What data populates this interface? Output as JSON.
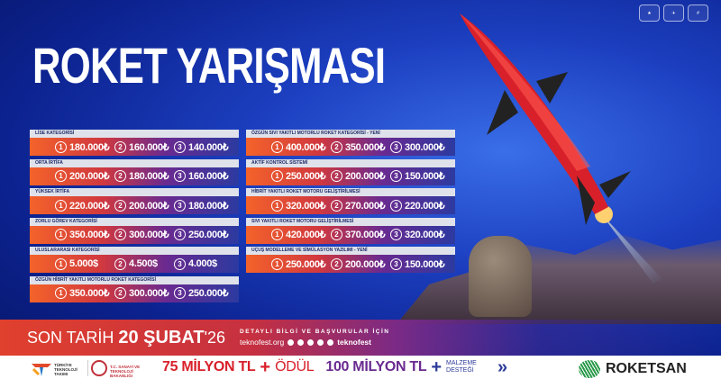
{
  "title": "ROKET YARIŞMASI",
  "badges": [
    "icon-1",
    "icon-2",
    "icon-3"
  ],
  "left_categories": [
    {
      "name": "LİSE KATEGORİSİ",
      "prizes": [
        "180.000₺",
        "160.000₺",
        "140.000₺"
      ]
    },
    {
      "name": "ORTA İRTİFA",
      "prizes": [
        "200.000₺",
        "180.000₺",
        "160.000₺"
      ]
    },
    {
      "name": "YÜKSEK İRTİFA",
      "prizes": [
        "220.000₺",
        "200.000₺",
        "180.000₺"
      ]
    },
    {
      "name": "ZORLU GÖREV KATEGORİSİ",
      "prizes": [
        "350.000₺",
        "300.000₺",
        "250.000₺"
      ]
    },
    {
      "name": "ULUSLARARASI KATEGORİSİ",
      "prizes": [
        "5.000$",
        "4.500$",
        "4.000$"
      ]
    },
    {
      "name": "ÖZGÜN HİBRİT YAKITLI MOTORLU ROKET KATEGORİSİ",
      "prizes": [
        "350.000₺",
        "300.000₺",
        "250.000₺"
      ]
    }
  ],
  "right_categories": [
    {
      "name": "ÖZGÜN SIVI YAKITLI MOTORLU ROKET KATEGORİSİ - YENİ",
      "prizes": [
        "400.000₺",
        "350.000₺",
        "300.000₺"
      ]
    },
    {
      "name": "AKTİF KONTROL SİSTEMİ",
      "prizes": [
        "250.000₺",
        "200.000₺",
        "150.000₺"
      ]
    },
    {
      "name": "HİBRİT YAKITLI ROKET MOTORU GELİŞTİRİLMESİ",
      "prizes": [
        "320.000₺",
        "270.000₺",
        "220.000₺"
      ]
    },
    {
      "name": "SIVI YAKITLI ROKET MOTORU GELİŞTİRİLMESİ",
      "prizes": [
        "420.000₺",
        "370.000₺",
        "320.000₺"
      ]
    },
    {
      "name": "UÇUŞ MODELLEME VE SİMÜLASYON YAZILIMI - YENİ",
      "prizes": [
        "250.000₺",
        "200.000₺",
        "150.000₺"
      ]
    }
  ],
  "ranks": [
    "1",
    "2",
    "3"
  ],
  "deadline": {
    "prefix": "SON TARİH ",
    "date": "20 ŞUBAT",
    "year": "'26"
  },
  "info": {
    "heading": "DETAYLI BİLGİ VE BAŞVURULAR İÇİN",
    "site": "teknofest.org",
    "handle": "teknofest"
  },
  "footer": {
    "org1": "TÜRKİYE TEKNOLOJİ TAKIMI",
    "org2": "T.C. SANAYİ VE TEKNOLOJİ BAKANLIĞI",
    "prize1": "75 MİLYON TL",
    "prize1_suffix": "ÖDÜL",
    "prize2": "100 MİLYON TL",
    "prize2_suffix": "MALZEME DESTEĞİ",
    "sponsor": "ROKETSAN"
  },
  "colors": {
    "accent_orange": "#f4632a",
    "accent_red": "#e0402e",
    "purple": "#6a2a90",
    "navy": "#0c228f"
  }
}
